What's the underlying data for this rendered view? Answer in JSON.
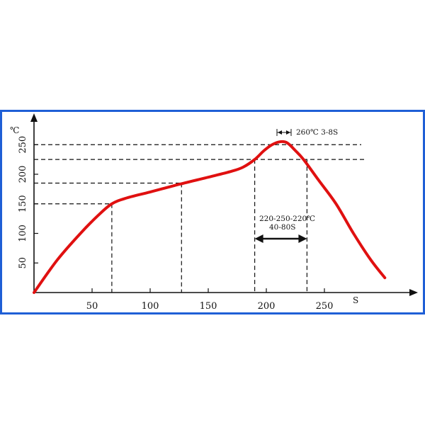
{
  "chart_data": {
    "type": "line",
    "title": "",
    "xlabel": "S",
    "ylabel": "℃",
    "xlim": [
      0,
      315
    ],
    "ylim": [
      0,
      295
    ],
    "x_ticks": [
      50,
      100,
      150,
      200,
      250
    ],
    "y_ticks": [
      50,
      100,
      150,
      200,
      250
    ],
    "grid": false,
    "series": [
      {
        "name": "",
        "color": "#e01010",
        "points": [
          [
            0,
            0
          ],
          [
            20,
            55
          ],
          [
            40,
            100
          ],
          [
            55,
            130
          ],
          [
            67,
            150
          ],
          [
            80,
            160
          ],
          [
            100,
            170
          ],
          [
            125,
            183
          ],
          [
            150,
            195
          ],
          [
            170,
            205
          ],
          [
            180,
            212
          ],
          [
            190,
            225
          ],
          [
            198,
            240
          ],
          [
            205,
            250
          ],
          [
            212,
            255
          ],
          [
            218,
            253
          ],
          [
            225,
            240
          ],
          [
            232,
            225
          ],
          [
            245,
            190
          ],
          [
            260,
            150
          ],
          [
            275,
            100
          ],
          [
            290,
            55
          ],
          [
            302,
            25
          ]
        ]
      }
    ],
    "reference_lines": {
      "horizontal": [
        250,
        225,
        185,
        150
      ],
      "vertical": [
        67,
        127,
        190,
        235
      ]
    },
    "annotations": {
      "peak": "260℃  3-8S",
      "range_line1": "220-250-220℃",
      "range_line2": "40-80S"
    }
  },
  "colors": {
    "frame": "#1f5fd6",
    "curve": "#e01010",
    "axis": "#111111"
  }
}
